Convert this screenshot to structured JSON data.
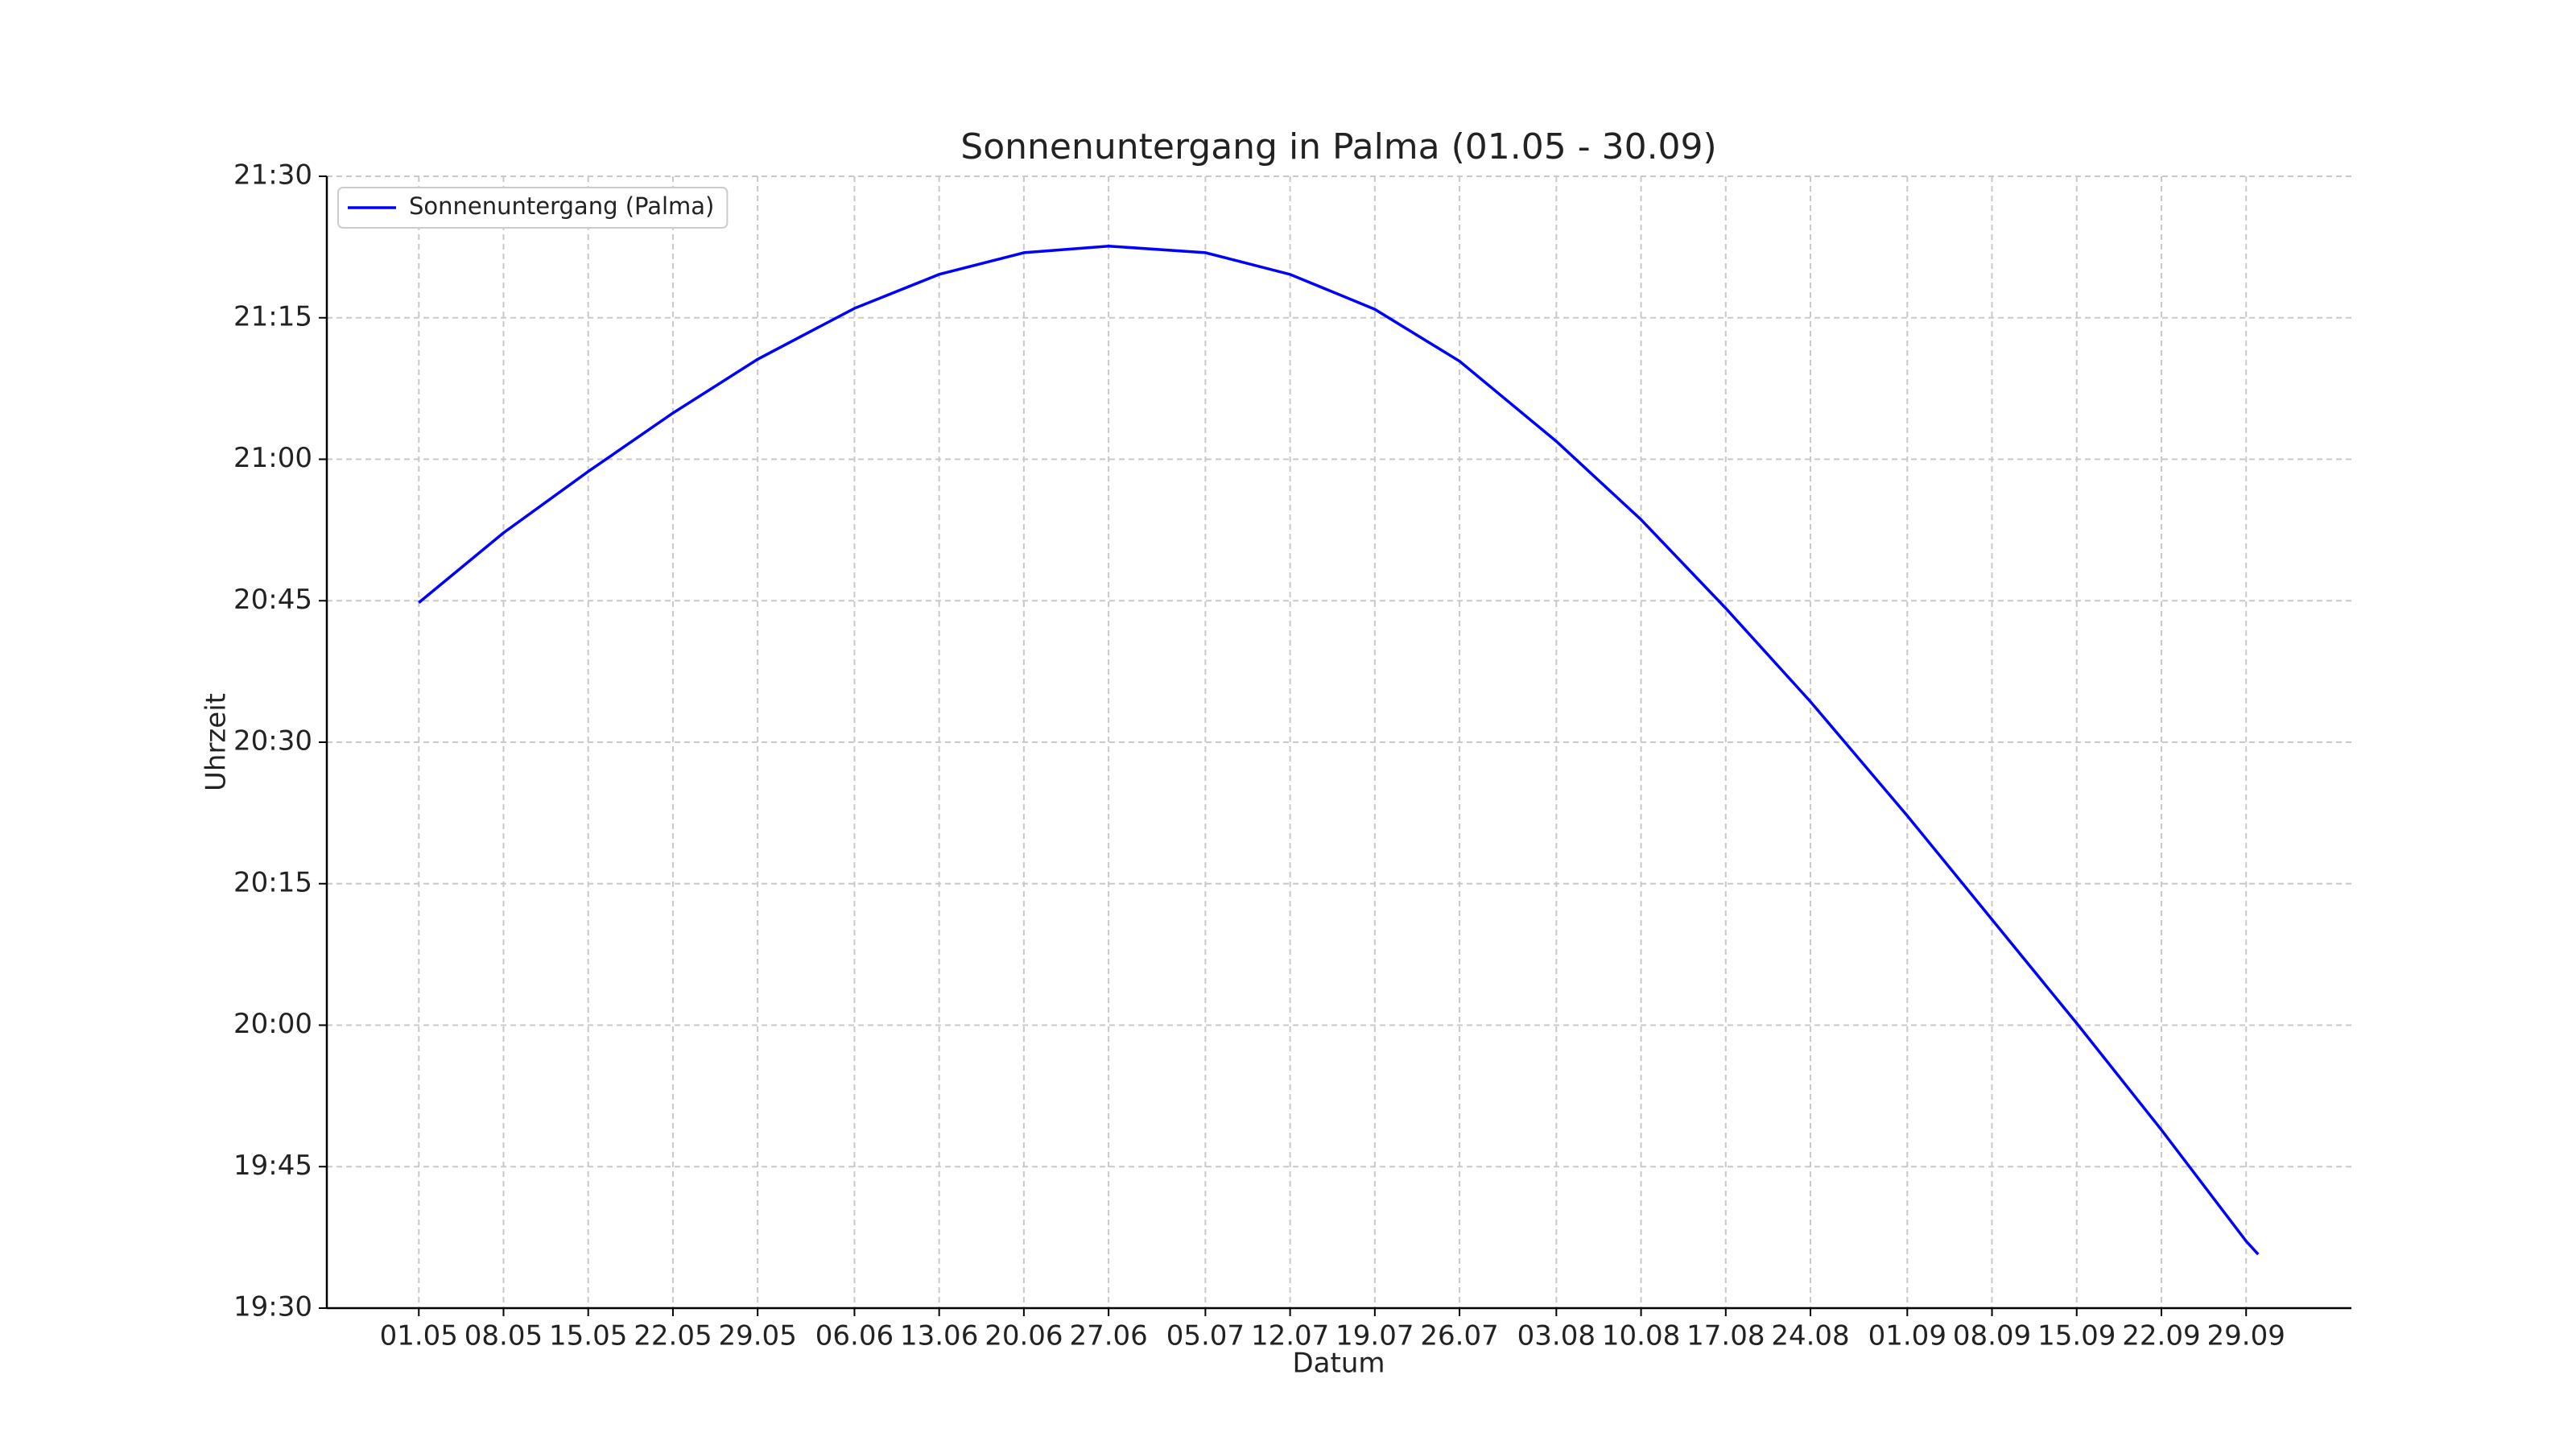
{
  "chart_data": {
    "type": "line",
    "title": "Sonnenuntergang in Palma (01.05 - 30.09)",
    "xlabel": "Datum",
    "ylabel": "Uhrzeit",
    "x": [
      0,
      7,
      14,
      21,
      28,
      36,
      43,
      50,
      57,
      65,
      72,
      79,
      86,
      94,
      101,
      108,
      115,
      123,
      130,
      137,
      144,
      151,
      152
    ],
    "series": [
      {
        "name": "Sonnenuntergang (Palma)",
        "color": "#0000ff",
        "values": [
          1244.8,
          1252.2,
          1258.7,
          1264.9,
          1270.6,
          1276.0,
          1279.6,
          1281.9,
          1282.6,
          1281.9,
          1279.6,
          1275.9,
          1270.4,
          1261.9,
          1253.6,
          1244.2,
          1234.3,
          1222.2,
          1211.2,
          1200.2,
          1188.9,
          1177.1,
          1175.7
        ]
      }
    ],
    "xlim": [
      -7.6,
      159.7
    ],
    "xticks": [
      {
        "value": 0,
        "label": "01.05"
      },
      {
        "value": 7,
        "label": "08.05"
      },
      {
        "value": 14,
        "label": "15.05"
      },
      {
        "value": 21,
        "label": "22.05"
      },
      {
        "value": 28,
        "label": "29.05"
      },
      {
        "value": 36,
        "label": "06.06"
      },
      {
        "value": 43,
        "label": "13.06"
      },
      {
        "value": 50,
        "label": "20.06"
      },
      {
        "value": 57,
        "label": "27.06"
      },
      {
        "value": 65,
        "label": "05.07"
      },
      {
        "value": 72,
        "label": "12.07"
      },
      {
        "value": 79,
        "label": "19.07"
      },
      {
        "value": 86,
        "label": "26.07"
      },
      {
        "value": 94,
        "label": "03.08"
      },
      {
        "value": 101,
        "label": "10.08"
      },
      {
        "value": 108,
        "label": "17.08"
      },
      {
        "value": 115,
        "label": "24.08"
      },
      {
        "value": 123,
        "label": "01.09"
      },
      {
        "value": 130,
        "label": "08.09"
      },
      {
        "value": 137,
        "label": "15.09"
      },
      {
        "value": 144,
        "label": "22.09"
      },
      {
        "value": 151,
        "label": "29.09"
      }
    ],
    "ylim": [
      1170,
      1290
    ],
    "yticks": [
      {
        "value": 1170,
        "label": "19:30"
      },
      {
        "value": 1185,
        "label": "19:45"
      },
      {
        "value": 1200,
        "label": "20:00"
      },
      {
        "value": 1215,
        "label": "20:15"
      },
      {
        "value": 1230,
        "label": "20:30"
      },
      {
        "value": 1245,
        "label": "20:45"
      },
      {
        "value": 1260,
        "label": "21:00"
      },
      {
        "value": 1275,
        "label": "21:15"
      },
      {
        "value": 1290,
        "label": "21:30"
      }
    ],
    "grid": true,
    "legend": "upper left"
  }
}
